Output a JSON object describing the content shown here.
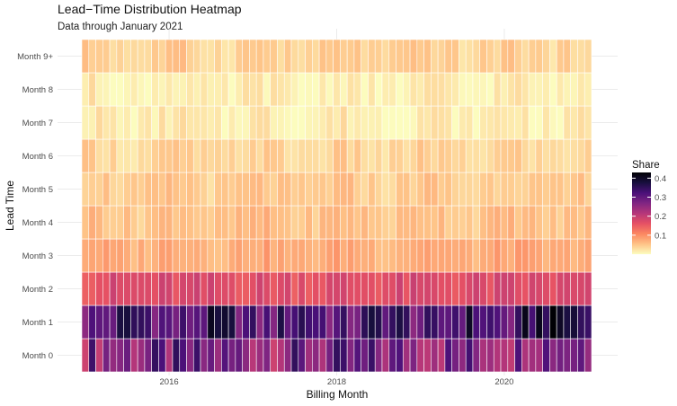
{
  "chart_data": {
    "type": "heatmap",
    "title": "Lead−Time Distribution Heatmap",
    "subtitle": "Data through January 2021",
    "xlabel": "Billing Month",
    "ylabel": "Lead Time",
    "x_start": "2015-01",
    "x_end": "2021-01",
    "x_ticks": [
      "2016",
      "2018",
      "2020"
    ],
    "y_categories": [
      "Month 0",
      "Month 1",
      "Month 2",
      "Month 3",
      "Month 4",
      "Month 5",
      "Month 6",
      "Month 7",
      "Month 8",
      "Month 9+"
    ],
    "legend": {
      "title": "Share",
      "placement": "right",
      "range": [
        0,
        0.43
      ],
      "ticks": [
        "0.1",
        "0.2",
        "0.3",
        "0.4"
      ],
      "colors": [
        "#fcfdbf",
        "#fec287",
        "#fb8761",
        "#e65164",
        "#b5367a",
        "#802582",
        "#4a1079",
        "#180f3e",
        "#000004"
      ]
    },
    "typical_share_by_lead": [
      0.27,
      0.32,
      0.17,
      0.075,
      0.055,
      0.045,
      0.035,
      0.015,
      0.012,
      0.04
    ],
    "grid": true
  }
}
